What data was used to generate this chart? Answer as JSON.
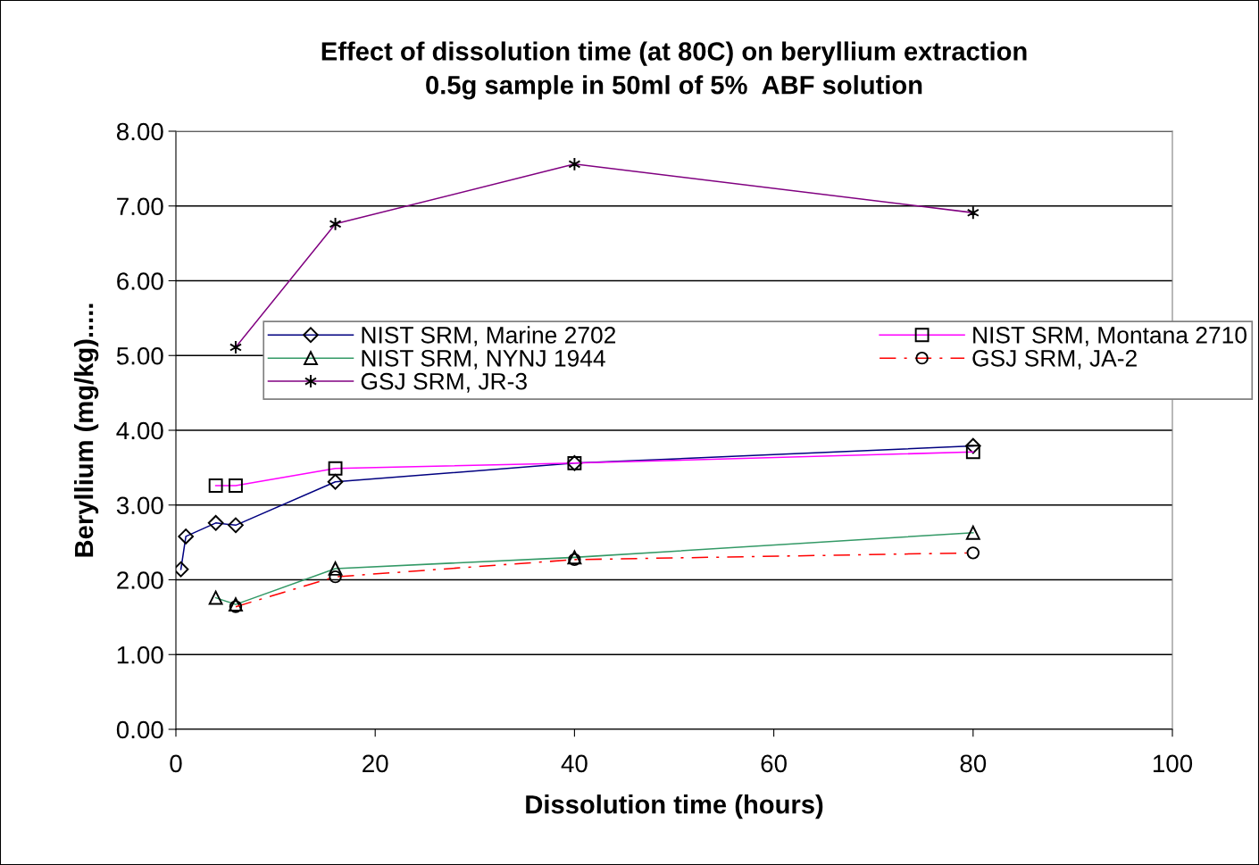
{
  "chart_data": {
    "type": "line",
    "title": "Effect of dissolution time (at 80C) on beryllium extraction\n0.5g sample in 50ml of 5%  ABF solution",
    "xlabel": "Dissolution time (hours)",
    "ylabel": "Beryllium (mg/kg).....",
    "xlim": [
      0,
      100
    ],
    "xticks": [
      0,
      20,
      40,
      60,
      80,
      100
    ],
    "ylim": [
      0,
      8
    ],
    "yticks": [
      {
        "value": 0,
        "label": "0.00"
      },
      {
        "value": 1,
        "label": "1.00"
      },
      {
        "value": 2,
        "label": "2.00"
      },
      {
        "value": 3,
        "label": "3.00"
      },
      {
        "value": 4,
        "label": "4.00"
      },
      {
        "value": 5,
        "label": "5.00"
      },
      {
        "value": 6,
        "label": "6.00"
      },
      {
        "value": 7,
        "label": "7.00"
      },
      {
        "value": 8,
        "label": "8.00"
      }
    ],
    "grid": "y",
    "legend": "right",
    "series": [
      {
        "name": "NIST SRM, Marine 2702",
        "color": "#000080",
        "marker": "diamond",
        "line_style": "solid",
        "x": [
          0.5,
          1,
          4,
          6,
          16,
          40,
          80
        ],
        "values": [
          2.14,
          2.58,
          2.76,
          2.73,
          3.31,
          3.56,
          3.79
        ]
      },
      {
        "name": "NIST SRM, NYNJ 1944",
        "color": "#339966",
        "marker": "triangle",
        "line_style": "solid",
        "x": [
          4,
          6,
          16,
          40,
          80
        ],
        "values": [
          1.76,
          1.67,
          2.15,
          2.3,
          2.63
        ]
      },
      {
        "name": "GSJ SRM, JR-3",
        "color": "#800080",
        "marker": "cross",
        "line_style": "solid",
        "x": [
          6,
          16,
          40,
          80
        ],
        "values": [
          5.11,
          6.76,
          7.56,
          6.91
        ]
      },
      {
        "name": "NIST SRM, Montana 2710",
        "color": "#ff00ff",
        "marker": "square",
        "line_style": "solid",
        "x": [
          4,
          6,
          16,
          40,
          80
        ],
        "values": [
          3.26,
          3.26,
          3.49,
          3.56,
          3.71
        ]
      },
      {
        "name": "GSJ SRM, JA-2",
        "color": "#ff0000",
        "marker": "circle",
        "line_style": "dashed",
        "x": [
          6,
          16,
          40,
          80
        ],
        "values": [
          1.64,
          2.04,
          2.27,
          2.36
        ]
      }
    ]
  }
}
